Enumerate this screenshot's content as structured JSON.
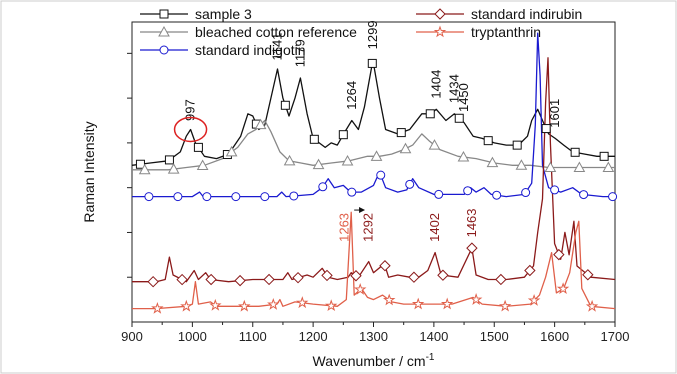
{
  "chart_data": {
    "type": "line",
    "xlabel": "Wavenumber / cm",
    "xlabel_superscript": "-1",
    "ylabel": "Raman Intensity",
    "xlim": [
      900,
      1700
    ],
    "x_ticks": [
      900,
      1000,
      1100,
      1200,
      1300,
      1400,
      1500,
      1600,
      1700
    ],
    "y_axis_ticks_labeled": false,
    "legend_position": "top",
    "series": [
      {
        "name": "sample 3",
        "color": "#111111",
        "marker": "square",
        "points": [
          [
            900,
            0.7
          ],
          [
            930,
            0.71
          ],
          [
            960,
            0.72
          ],
          [
            980,
            0.76
          ],
          [
            990,
            0.83
          ],
          [
            997,
            0.86
          ],
          [
            1005,
            0.8
          ],
          [
            1020,
            0.74
          ],
          [
            1040,
            0.73
          ],
          [
            1060,
            0.75
          ],
          [
            1080,
            0.83
          ],
          [
            1092,
            0.93
          ],
          [
            1100,
            0.92
          ],
          [
            1110,
            0.86
          ],
          [
            1120,
            0.88
          ],
          [
            1130,
            1.0
          ],
          [
            1141,
            1.13
          ],
          [
            1150,
            1.0
          ],
          [
            1160,
            0.92
          ],
          [
            1170,
            1.0
          ],
          [
            1179,
            1.09
          ],
          [
            1190,
            0.93
          ],
          [
            1200,
            0.82
          ],
          [
            1210,
            0.8
          ],
          [
            1220,
            0.78
          ],
          [
            1230,
            0.8
          ],
          [
            1240,
            0.79
          ],
          [
            1255,
            0.86
          ],
          [
            1264,
            0.9
          ],
          [
            1275,
            0.86
          ],
          [
            1285,
            0.96
          ],
          [
            1299,
            1.17
          ],
          [
            1310,
            1.0
          ],
          [
            1320,
            0.86
          ],
          [
            1340,
            0.84
          ],
          [
            1360,
            0.86
          ],
          [
            1380,
            0.93
          ],
          [
            1395,
            0.93
          ],
          [
            1404,
            0.95
          ],
          [
            1420,
            0.9
          ],
          [
            1434,
            0.93
          ],
          [
            1450,
            0.89
          ],
          [
            1465,
            0.83
          ],
          [
            1480,
            0.82
          ],
          [
            1500,
            0.8
          ],
          [
            1520,
            0.79
          ],
          [
            1540,
            0.79
          ],
          [
            1555,
            0.83
          ],
          [
            1562,
            0.9
          ],
          [
            1572,
            0.95
          ],
          [
            1580,
            0.9
          ],
          [
            1590,
            0.84
          ],
          [
            1601,
            0.82
          ],
          [
            1615,
            0.79
          ],
          [
            1630,
            0.76
          ],
          [
            1650,
            0.75
          ],
          [
            1670,
            0.74
          ],
          [
            1700,
            0.74
          ]
        ]
      },
      {
        "name": "bleached cotton reference",
        "color": "#888888",
        "marker": "triangle",
        "points": [
          [
            900,
            0.68
          ],
          [
            930,
            0.68
          ],
          [
            960,
            0.68
          ],
          [
            990,
            0.69
          ],
          [
            1020,
            0.7
          ],
          [
            1050,
            0.73
          ],
          [
            1075,
            0.78
          ],
          [
            1092,
            0.84
          ],
          [
            1105,
            0.86
          ],
          [
            1120,
            0.9
          ],
          [
            1130,
            0.85
          ],
          [
            1145,
            0.76
          ],
          [
            1160,
            0.72
          ],
          [
            1180,
            0.71
          ],
          [
            1200,
            0.7
          ],
          [
            1230,
            0.71
          ],
          [
            1260,
            0.72
          ],
          [
            1290,
            0.74
          ],
          [
            1310,
            0.74
          ],
          [
            1330,
            0.75
          ],
          [
            1350,
            0.77
          ],
          [
            1365,
            0.79
          ],
          [
            1380,
            0.84
          ],
          [
            1392,
            0.81
          ],
          [
            1410,
            0.77
          ],
          [
            1440,
            0.74
          ],
          [
            1470,
            0.73
          ],
          [
            1500,
            0.71
          ],
          [
            1530,
            0.7
          ],
          [
            1560,
            0.7
          ],
          [
            1590,
            0.69
          ],
          [
            1620,
            0.69
          ],
          [
            1660,
            0.69
          ],
          [
            1700,
            0.69
          ]
        ]
      },
      {
        "name": "standard indigotin",
        "color": "#1a1ad0",
        "marker": "circle",
        "points": [
          [
            900,
            0.56
          ],
          [
            950,
            0.56
          ],
          [
            1000,
            0.56
          ],
          [
            1012,
            0.58
          ],
          [
            1018,
            0.56
          ],
          [
            1050,
            0.56
          ],
          [
            1100,
            0.56
          ],
          [
            1140,
            0.56
          ],
          [
            1148,
            0.58
          ],
          [
            1155,
            0.56
          ],
          [
            1200,
            0.57
          ],
          [
            1215,
            0.6
          ],
          [
            1225,
            0.64
          ],
          [
            1235,
            0.6
          ],
          [
            1250,
            0.61
          ],
          [
            1262,
            0.58
          ],
          [
            1280,
            0.58
          ],
          [
            1300,
            0.61
          ],
          [
            1310,
            0.67
          ],
          [
            1320,
            0.6
          ],
          [
            1340,
            0.58
          ],
          [
            1355,
            0.59
          ],
          [
            1365,
            0.64
          ],
          [
            1375,
            0.6
          ],
          [
            1400,
            0.57
          ],
          [
            1430,
            0.57
          ],
          [
            1450,
            0.57
          ],
          [
            1461,
            0.6
          ],
          [
            1470,
            0.58
          ],
          [
            1483,
            0.6
          ],
          [
            1495,
            0.57
          ],
          [
            1520,
            0.56
          ],
          [
            1550,
            0.57
          ],
          [
            1562,
            0.62
          ],
          [
            1568,
            0.88
          ],
          [
            1572,
            1.29
          ],
          [
            1576,
            1.1
          ],
          [
            1580,
            0.7
          ],
          [
            1590,
            0.6
          ],
          [
            1610,
            0.58
          ],
          [
            1630,
            0.6
          ],
          [
            1645,
            0.57
          ],
          [
            1680,
            0.56
          ],
          [
            1700,
            0.56
          ]
        ]
      },
      {
        "name": "standard indirubin",
        "color": "#8b1a1a",
        "marker": "diamond",
        "points": [
          [
            900,
            0.18
          ],
          [
            940,
            0.18
          ],
          [
            955,
            0.19
          ],
          [
            962,
            0.29
          ],
          [
            968,
            0.21
          ],
          [
            990,
            0.18
          ],
          [
            1003,
            0.23
          ],
          [
            1010,
            0.19
          ],
          [
            1022,
            0.22
          ],
          [
            1030,
            0.19
          ],
          [
            1060,
            0.18
          ],
          [
            1100,
            0.19
          ],
          [
            1130,
            0.19
          ],
          [
            1150,
            0.19
          ],
          [
            1158,
            0.22
          ],
          [
            1165,
            0.19
          ],
          [
            1190,
            0.21
          ],
          [
            1200,
            0.2
          ],
          [
            1215,
            0.24
          ],
          [
            1225,
            0.2
          ],
          [
            1240,
            0.19
          ],
          [
            1258,
            0.2
          ],
          [
            1263,
            0.22
          ],
          [
            1275,
            0.2
          ],
          [
            1292,
            0.27
          ],
          [
            1300,
            0.22
          ],
          [
            1318,
            0.26
          ],
          [
            1325,
            0.2
          ],
          [
            1340,
            0.21
          ],
          [
            1360,
            0.2
          ],
          [
            1375,
            0.2
          ],
          [
            1390,
            0.23
          ],
          [
            1402,
            0.31
          ],
          [
            1412,
            0.21
          ],
          [
            1440,
            0.2
          ],
          [
            1463,
            0.33
          ],
          [
            1470,
            0.21
          ],
          [
            1490,
            0.19
          ],
          [
            1520,
            0.19
          ],
          [
            1550,
            0.2
          ],
          [
            1565,
            0.25
          ],
          [
            1572,
            0.4
          ],
          [
            1580,
            0.55
          ],
          [
            1585,
            0.98
          ],
          [
            1589,
            1.18
          ],
          [
            1593,
            0.8
          ],
          [
            1600,
            0.35
          ],
          [
            1610,
            0.28
          ],
          [
            1617,
            0.4
          ],
          [
            1624,
            0.3
          ],
          [
            1632,
            0.45
          ],
          [
            1637,
            0.25
          ],
          [
            1660,
            0.2
          ],
          [
            1700,
            0.19
          ]
        ]
      },
      {
        "name": "tryptanthrin",
        "color": "#e0604a",
        "marker": "star",
        "points": [
          [
            900,
            0.06
          ],
          [
            940,
            0.06
          ],
          [
            990,
            0.07
          ],
          [
            1000,
            0.08
          ],
          [
            1005,
            0.18
          ],
          [
            1010,
            0.08
          ],
          [
            1030,
            0.09
          ],
          [
            1040,
            0.07
          ],
          [
            1080,
            0.07
          ],
          [
            1110,
            0.07
          ],
          [
            1140,
            0.08
          ],
          [
            1145,
            0.1
          ],
          [
            1150,
            0.07
          ],
          [
            1170,
            0.09
          ],
          [
            1200,
            0.08
          ],
          [
            1240,
            0.07
          ],
          [
            1255,
            0.1
          ],
          [
            1263,
            0.49
          ],
          [
            1268,
            0.12
          ],
          [
            1280,
            0.15
          ],
          [
            1290,
            0.11
          ],
          [
            1300,
            0.1
          ],
          [
            1315,
            0.12
          ],
          [
            1330,
            0.09
          ],
          [
            1350,
            0.08
          ],
          [
            1375,
            0.08
          ],
          [
            1400,
            0.08
          ],
          [
            1430,
            0.08
          ],
          [
            1465,
            0.11
          ],
          [
            1480,
            0.08
          ],
          [
            1520,
            0.07
          ],
          [
            1560,
            0.08
          ],
          [
            1575,
            0.12
          ],
          [
            1585,
            0.2
          ],
          [
            1595,
            0.31
          ],
          [
            1603,
            0.13
          ],
          [
            1615,
            0.15
          ],
          [
            1625,
            0.22
          ],
          [
            1635,
            0.4
          ],
          [
            1640,
            0.45
          ],
          [
            1645,
            0.15
          ],
          [
            1660,
            0.07
          ],
          [
            1700,
            0.06
          ]
        ]
      }
    ],
    "peak_labels": [
      {
        "text": "997",
        "x": 997,
        "y": 0.88,
        "color": "#111111"
      },
      {
        "text": "1141",
        "x": 1141,
        "y": 1.15,
        "color": "#111111"
      },
      {
        "text": "1179",
        "x": 1179,
        "y": 1.12,
        "color": "#111111"
      },
      {
        "text": "1264",
        "x": 1264,
        "y": 0.93,
        "color": "#111111"
      },
      {
        "text": "1299",
        "x": 1299,
        "y": 1.2,
        "color": "#111111"
      },
      {
        "text": "1404",
        "x": 1404,
        "y": 0.98,
        "color": "#111111"
      },
      {
        "text": "1434",
        "x": 1434,
        "y": 0.96,
        "color": "#111111"
      },
      {
        "text": "1450",
        "x": 1450,
        "y": 0.92,
        "color": "#111111"
      },
      {
        "text": "1601",
        "x": 1601,
        "y": 0.85,
        "color": "#111111"
      },
      {
        "text": "1263",
        "x": 1252,
        "y": 0.34,
        "color": "#e0604a"
      },
      {
        "text": "1292",
        "x": 1292,
        "y": 0.34,
        "color": "#8b1a1a"
      },
      {
        "text": "1402",
        "x": 1402,
        "y": 0.34,
        "color": "#8b1a1a"
      },
      {
        "text": "1463",
        "x": 1463,
        "y": 0.36,
        "color": "#8b1a1a"
      }
    ],
    "annotations": [
      {
        "kind": "circle",
        "x": 997,
        "y": 0.86,
        "color": "#dd2222"
      },
      {
        "kind": "arrow",
        "x_from": 1268,
        "x_to": 1286,
        "y": 0.5,
        "color": "#111111"
      }
    ]
  }
}
